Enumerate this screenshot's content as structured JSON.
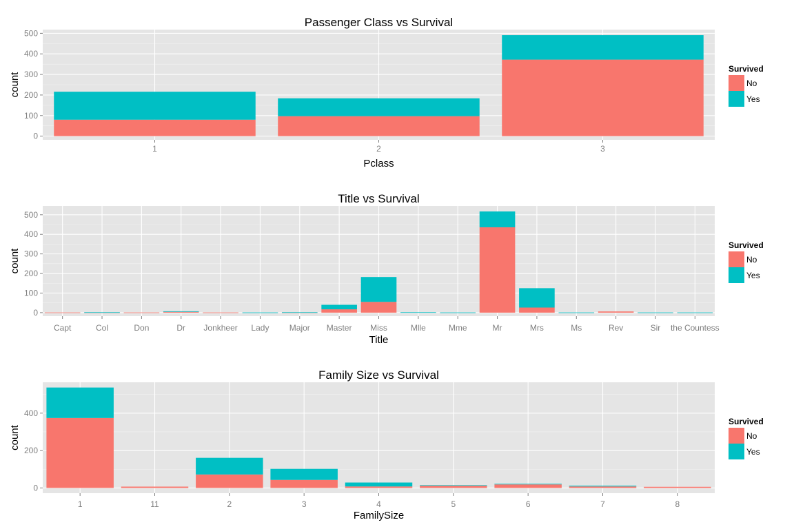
{
  "colors": {
    "No": "#F8766D",
    "Yes": "#00BFC4",
    "panel": "#E5E5E5",
    "grid_major": "#FFFFFF",
    "grid_minor": "#F2F2F2"
  },
  "chart_data": [
    {
      "type": "bar",
      "stacked": true,
      "title": "Passenger Class vs Survival",
      "xlabel": "Pclass",
      "ylabel": "count",
      "categories": [
        "1",
        "2",
        "3"
      ],
      "series": [
        {
          "name": "No",
          "values": [
            80,
            97,
            372
          ]
        },
        {
          "name": "Yes",
          "values": [
            136,
            87,
            119
          ]
        }
      ],
      "ylim": [
        -18,
        518
      ],
      "yticks": [
        0,
        100,
        200,
        300,
        400,
        500
      ],
      "legend": {
        "title": "Survived",
        "position": "right"
      }
    },
    {
      "type": "bar",
      "stacked": true,
      "title": "Title vs Survival",
      "xlabel": "Title",
      "ylabel": "count",
      "categories": [
        "Capt",
        "Col",
        "Don",
        "Dr",
        "Jonkheer",
        "Lady",
        "Major",
        "Master",
        "Miss",
        "Mlle",
        "Mme",
        "Mr",
        "Mrs",
        "Ms",
        "Rev",
        "Sir",
        "the Countess"
      ],
      "series": [
        {
          "name": "No",
          "values": [
            1,
            1,
            1,
            4,
            1,
            0,
            1,
            17,
            55,
            0,
            0,
            436,
            26,
            0,
            6,
            0,
            0
          ]
        },
        {
          "name": "Yes",
          "values": [
            0,
            1,
            0,
            3,
            0,
            1,
            1,
            23,
            127,
            2,
            1,
            81,
            99,
            1,
            0,
            1,
            1
          ]
        }
      ],
      "ylim": [
        -18,
        545
      ],
      "yticks": [
        0,
        100,
        200,
        300,
        400,
        500
      ],
      "legend": {
        "title": "Survived",
        "position": "right"
      }
    },
    {
      "type": "bar",
      "stacked": true,
      "title": "Family Size vs Survival",
      "xlabel": "FamilySize",
      "ylabel": "count",
      "categories": [
        "1",
        "11",
        "2",
        "3",
        "4",
        "5",
        "6",
        "7",
        "8"
      ],
      "series": [
        {
          "name": "No",
          "values": [
            374,
            7,
            72,
            43,
            8,
            12,
            19,
            8,
            6
          ]
        },
        {
          "name": "Yes",
          "values": [
            163,
            0,
            89,
            59,
            21,
            3,
            3,
            4,
            0
          ]
        }
      ],
      "ylim": [
        -28,
        565
      ],
      "yticks": [
        0,
        200,
        400
      ],
      "legend": {
        "title": "Survived",
        "position": "right"
      }
    }
  ]
}
